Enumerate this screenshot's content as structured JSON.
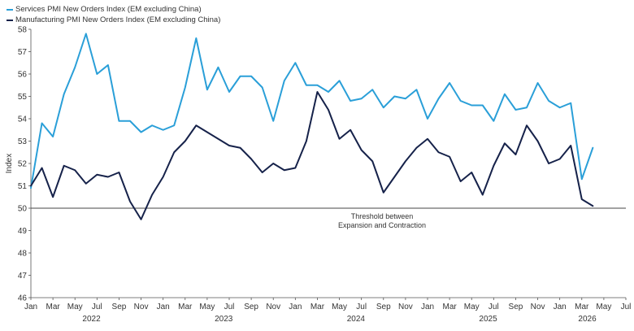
{
  "chart_data": {
    "type": "line",
    "ylabel": "Index",
    "xlabel": "",
    "ylim": [
      46,
      58
    ],
    "yticks": [
      46,
      47,
      48,
      49,
      50,
      51,
      52,
      53,
      54,
      55,
      56,
      57,
      58
    ],
    "x_month_labels": [
      "Jan",
      "Mar",
      "May",
      "Jul",
      "Sep",
      "Nov",
      "Jan",
      "Mar",
      "May",
      "Jul",
      "Sep",
      "Nov",
      "Jan",
      "Mar",
      "May",
      "Jul",
      "Sep",
      "Nov",
      "Jan",
      "Mar",
      "May",
      "Jul",
      "Sep",
      "Nov",
      "Jan",
      "Mar",
      "May",
      "Jul"
    ],
    "x_year_labels": [
      "2022",
      "2023",
      "2024",
      "2025",
      "2026"
    ],
    "grid": false,
    "legend_position": "top-left",
    "threshold": {
      "value": 50,
      "label_line1": "Threshold between",
      "label_line2": "Expansion and Contraction"
    },
    "series": [
      {
        "name": "Services PMI New Orders Index (EM excluding China)",
        "color": "#2a9fd8",
        "values": [
          50.9,
          53.8,
          53.2,
          55.1,
          56.3,
          57.8,
          56.0,
          56.4,
          53.9,
          53.9,
          53.4,
          53.7,
          53.5,
          53.7,
          55.4,
          57.6,
          55.3,
          56.3,
          55.2,
          55.9,
          55.9,
          55.4,
          53.9,
          55.7,
          56.5,
          55.5,
          55.5,
          55.2,
          55.7,
          54.8,
          54.9,
          55.3,
          54.5,
          55.0,
          54.9,
          55.3,
          54.0,
          54.9,
          55.6,
          54.8,
          54.6,
          54.6,
          53.9,
          55.1,
          54.4,
          54.5,
          55.6,
          54.8,
          54.5,
          54.7,
          51.3,
          52.7
        ]
      },
      {
        "name": "Manufacturing PMI New Orders Index (EM excluding China)",
        "color": "#16224a",
        "values": [
          51.0,
          51.8,
          50.5,
          51.9,
          51.7,
          51.1,
          51.5,
          51.4,
          51.6,
          50.3,
          49.5,
          50.6,
          51.4,
          52.5,
          53.0,
          53.7,
          53.4,
          53.1,
          52.8,
          52.7,
          52.2,
          51.6,
          52.0,
          51.7,
          51.8,
          53.0,
          55.2,
          54.4,
          53.1,
          53.5,
          52.6,
          52.1,
          50.7,
          51.4,
          52.1,
          52.7,
          53.1,
          52.5,
          52.3,
          51.2,
          51.6,
          50.6,
          51.9,
          52.9,
          52.4,
          53.7,
          53.0,
          52.0,
          52.2,
          52.8,
          50.4,
          50.1
        ]
      }
    ]
  }
}
